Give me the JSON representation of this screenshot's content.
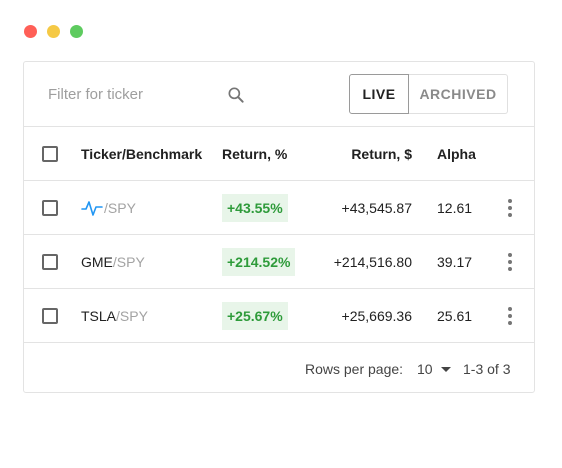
{
  "window": {
    "controls": [
      "close",
      "minimize",
      "maximize"
    ]
  },
  "toolbar": {
    "filter_placeholder": "Filter for ticker",
    "search_icon": "search-icon",
    "tabs": [
      {
        "label": "LIVE",
        "active": true
      },
      {
        "label": "ARCHIVED",
        "active": false
      }
    ]
  },
  "table": {
    "headers": {
      "ticker": "Ticker/Benchmark",
      "return_pct": "Return, %",
      "return_usd": "Return, $",
      "alpha": "Alpha"
    },
    "rows": [
      {
        "ticker": "",
        "ticker_icon": "pulse-icon",
        "benchmark": "/SPY",
        "return_pct": "+43.55%",
        "return_usd": "+43,545.87",
        "alpha": "12.61"
      },
      {
        "ticker": "GME",
        "benchmark": "/SPY",
        "return_pct": "+214.52%",
        "return_usd": "+214,516.80",
        "alpha": "39.17"
      },
      {
        "ticker": "TSLA",
        "benchmark": "/SPY",
        "return_pct": "+25.67%",
        "return_usd": "+25,669.36",
        "alpha": "25.61"
      }
    ]
  },
  "footer": {
    "rows_per_page_label": "Rows per page:",
    "rows_per_page_value": "10",
    "range": "1-3 of 3"
  },
  "colors": {
    "positive": "#2e9b3a",
    "positive_bg": "#e8f5e9",
    "pulse_icon": "#2196f3"
  }
}
